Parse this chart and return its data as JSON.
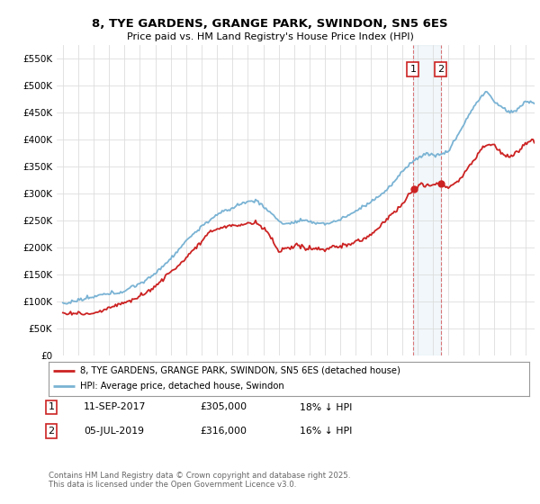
{
  "title": "8, TYE GARDENS, GRANGE PARK, SWINDON, SN5 6ES",
  "subtitle": "Price paid vs. HM Land Registry's House Price Index (HPI)",
  "ylim": [
    0,
    575000
  ],
  "yticks": [
    0,
    50000,
    100000,
    150000,
    200000,
    250000,
    300000,
    350000,
    400000,
    450000,
    500000,
    550000
  ],
  "hpi_color": "#7ab3d4",
  "price_color": "#cc2222",
  "marker1_x": 2017.71,
  "marker2_x": 2019.5,
  "marker1_label": "1",
  "marker2_label": "2",
  "legend_line1": "8, TYE GARDENS, GRANGE PARK, SWINDON, SN5 6ES (detached house)",
  "legend_line2": "HPI: Average price, detached house, Swindon",
  "table_row1": [
    "1",
    "11-SEP-2017",
    "£305,000",
    "18% ↓ HPI"
  ],
  "table_row2": [
    "2",
    "05-JUL-2019",
    "£316,000",
    "16% ↓ HPI"
  ],
  "footnote": "Contains HM Land Registry data © Crown copyright and database right 2025.\nThis data is licensed under the Open Government Licence v3.0.",
  "background_color": "#ffffff",
  "grid_color": "#dddddd"
}
